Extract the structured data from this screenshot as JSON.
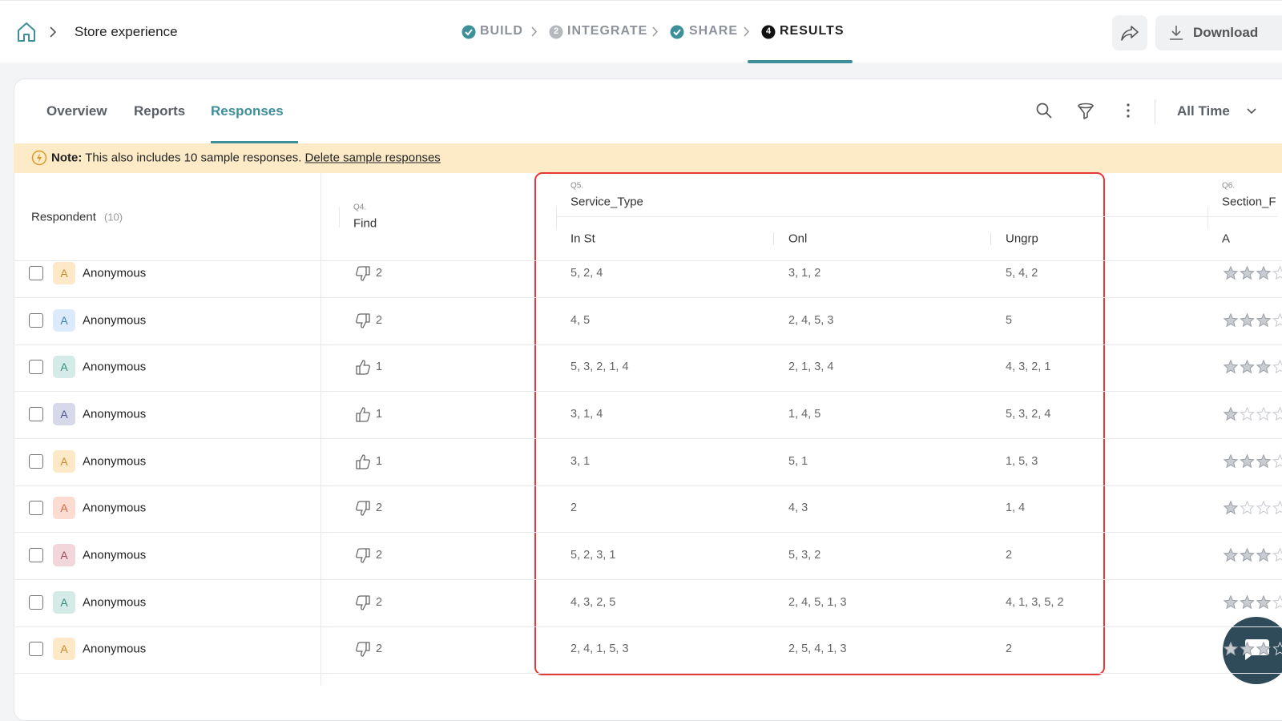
{
  "header": {
    "breadcrumb": "Store experience",
    "steps": [
      {
        "label": "BUILD",
        "state": "done"
      },
      {
        "number": "2",
        "label": "INTEGRATE",
        "state": "pending"
      },
      {
        "label": "SHARE",
        "state": "done"
      },
      {
        "number": "4",
        "label": "RESULTS",
        "state": "active"
      }
    ],
    "download": "Download"
  },
  "tabs": {
    "items": [
      "Overview",
      "Reports",
      "Responses"
    ],
    "active": 2
  },
  "filter": "All Time",
  "note": {
    "label": "Note:",
    "text": "This also includes 10 sample responses.",
    "link": "Delete sample responses"
  },
  "table": {
    "respondent": {
      "title": "Respondent",
      "count": "(10)"
    },
    "questions": [
      {
        "number": "Q4.",
        "title": "Find"
      },
      {
        "number": "Q5.",
        "title": "Service_Type",
        "options": [
          "In St",
          "Onl",
          "Ungrp"
        ]
      },
      {
        "number": "Q6.",
        "title": "Section_F",
        "options": [
          "A"
        ]
      }
    ],
    "rows": [
      {
        "avatar": "A",
        "avatar_bg": "#fde8c8",
        "avatar_fg": "#c98a2a",
        "name": "Anonymous",
        "find": {
          "icon": "down",
          "value": 2
        },
        "service_type": [
          "5, 2, 4",
          "3, 1, 2",
          "5, 4, 2"
        ],
        "rating": 3
      },
      {
        "avatar": "A",
        "avatar_bg": "#dcebfb",
        "avatar_fg": "#3f7fc0",
        "name": "Anonymous",
        "find": {
          "icon": "down",
          "value": 2
        },
        "service_type": [
          "4, 5",
          "2, 4, 5, 3",
          "5"
        ],
        "rating": 3
      },
      {
        "avatar": "A",
        "avatar_bg": "#d5ebe7",
        "avatar_fg": "#3a8a7e",
        "name": "Anonymous",
        "find": {
          "icon": "up",
          "value": 1
        },
        "service_type": [
          "5, 3, 2, 1, 4",
          "2, 1, 3, 4",
          "4, 3, 2, 1"
        ],
        "rating": 3
      },
      {
        "avatar": "A",
        "avatar_bg": "#d7d9ea",
        "avatar_fg": "#4d5590",
        "name": "Anonymous",
        "find": {
          "icon": "up",
          "value": 1
        },
        "service_type": [
          "3, 1, 4",
          "1, 4, 5",
          "5, 3, 2, 4"
        ],
        "rating": 1
      },
      {
        "avatar": "A",
        "avatar_bg": "#fde8c8",
        "avatar_fg": "#c98a2a",
        "name": "Anonymous",
        "find": {
          "icon": "up",
          "value": 1
        },
        "service_type": [
          "3, 1",
          "5, 1",
          "1, 5, 3"
        ],
        "rating": 3
      },
      {
        "avatar": "A",
        "avatar_bg": "#fcdcd0",
        "avatar_fg": "#d06a4a",
        "name": "Anonymous",
        "find": {
          "icon": "down",
          "value": 2
        },
        "service_type": [
          "2",
          "4, 3",
          "1, 4"
        ],
        "rating": 1
      },
      {
        "avatar": "A",
        "avatar_bg": "#f1d6dc",
        "avatar_fg": "#a04a5e",
        "name": "Anonymous",
        "find": {
          "icon": "down",
          "value": 2
        },
        "service_type": [
          "5, 2, 3, 1",
          "5, 3, 2",
          "2"
        ],
        "rating": 3
      },
      {
        "avatar": "A",
        "avatar_bg": "#d5ebe7",
        "avatar_fg": "#3a8a7e",
        "name": "Anonymous",
        "find": {
          "icon": "down",
          "value": 2
        },
        "service_type": [
          "4, 3, 2, 5",
          "2, 4, 5, 1, 3",
          "4, 1, 3, 5, 2"
        ],
        "rating": 3
      },
      {
        "avatar": "A",
        "avatar_bg": "#fde8c8",
        "avatar_fg": "#c98a2a",
        "name": "Anonymous",
        "find": {
          "icon": "down",
          "value": 2
        },
        "service_type": [
          "2, 4, 1, 5, 3",
          "2, 5, 4, 1, 3",
          "2"
        ],
        "rating": 3
      }
    ]
  }
}
